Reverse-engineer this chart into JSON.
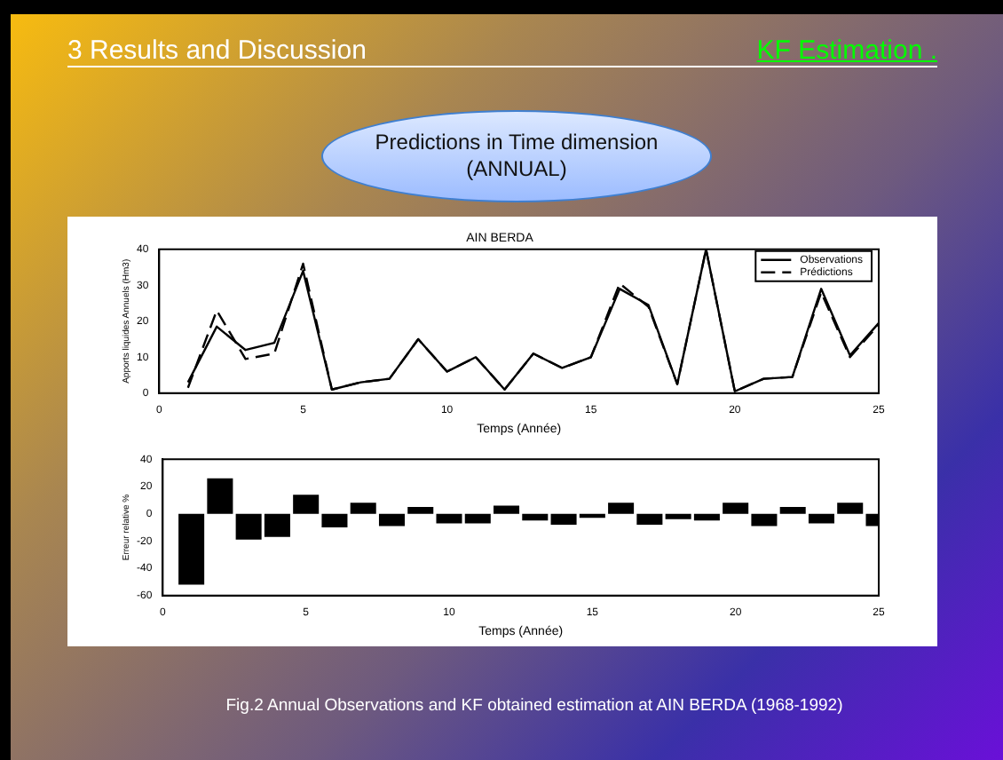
{
  "chart_data": [
    {
      "type": "line",
      "title": "AIN BERDA",
      "xlabel": "Temps (Année)",
      "ylabel": "Apports liquides Annuels (Hm3)",
      "annotations": [
        "3  Results  and Discussion",
        "KF Estimation .",
        "Predictions in Time dimension (ANNUAL)"
      ],
      "x": [
        1,
        2,
        3,
        4,
        5,
        6,
        7,
        8,
        9,
        10,
        11,
        12,
        13,
        14,
        15,
        16,
        17,
        18,
        19,
        20,
        21,
        22,
        23,
        24,
        25
      ],
      "series": [
        {
          "name": "Observations",
          "color": "#000000",
          "line_style": "solid",
          "values": [
            3,
            18.5,
            12,
            14,
            34,
            1,
            3,
            4,
            15,
            6,
            10,
            1,
            11,
            7,
            10,
            29,
            24.5,
            2.5,
            40,
            0.5,
            4,
            4.5,
            29,
            10.5,
            19.5
          ]
        },
        {
          "name": "Prédictions",
          "color": "#000000",
          "line_style": "dashed",
          "values": [
            1.5,
            23,
            9.5,
            11,
            36,
            1,
            3,
            4,
            15,
            6,
            10,
            1,
            11,
            7,
            10,
            30.5,
            24,
            2.5,
            40,
            0.5,
            4,
            4.5,
            28,
            10,
            19
          ]
        }
      ],
      "xlim": [
        0,
        25
      ],
      "xticks": [
        0,
        5,
        10,
        15,
        20,
        25
      ],
      "ylim": [
        0,
        40
      ],
      "yticks": [
        0,
        10,
        20,
        30,
        40
      ],
      "grid": false,
      "legend": "top right",
      "marker": "none"
    },
    {
      "type": "bar",
      "xlabel": "Temps (Année)",
      "ylabel": "Erreur relative %",
      "annotations": [
        "Fig.2  Annual Observations and KF obtained estimation at  AIN BERDA  (1968-1992)"
      ],
      "x": [
        1,
        2,
        3,
        4,
        5,
        6,
        7,
        8,
        9,
        10,
        11,
        12,
        13,
        14,
        15,
        16,
        17,
        18,
        19,
        20,
        21,
        22,
        23,
        24,
        25
      ],
      "values": [
        -52,
        26,
        -19,
        -17,
        14,
        -10,
        8,
        -9,
        5,
        -7,
        -7,
        6,
        -5,
        -8,
        -3,
        8,
        -8,
        -4,
        -5,
        8,
        -9,
        5,
        -7,
        8,
        -9
      ],
      "color": "#000000",
      "xlim": [
        0,
        25
      ],
      "xticks": [
        0,
        5,
        10,
        15,
        20,
        25
      ],
      "ylim": [
        -60,
        40
      ],
      "yticks": [
        -60,
        -40,
        -20,
        0,
        20,
        40
      ],
      "grid": false,
      "legend": false
    }
  ]
}
